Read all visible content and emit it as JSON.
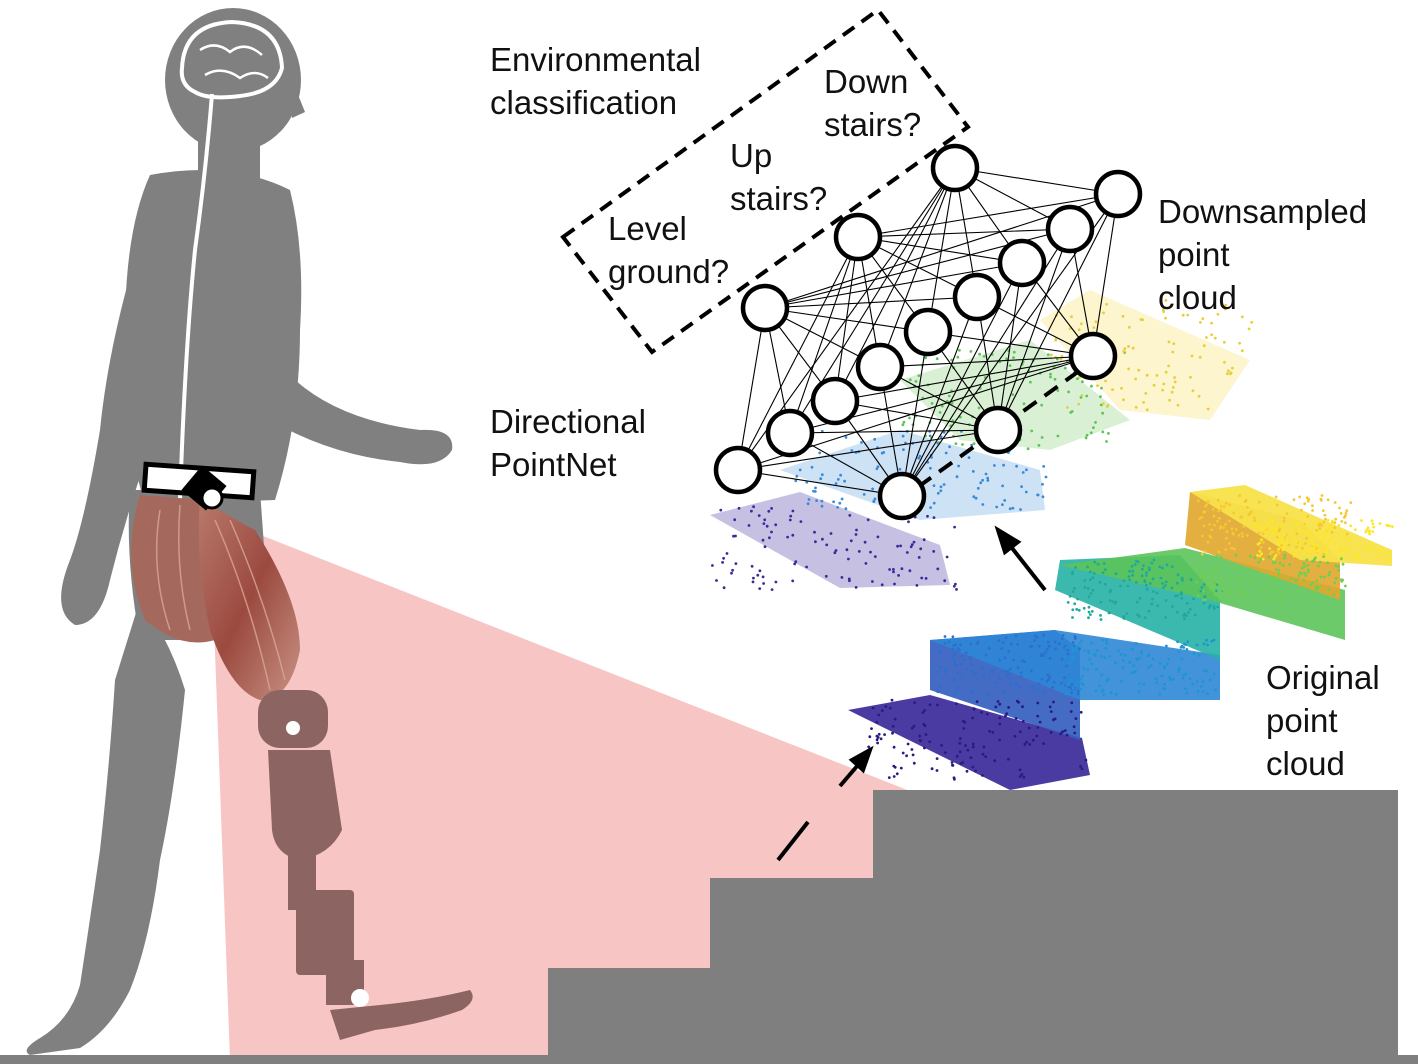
{
  "labels": {
    "env_line1": "Environmental",
    "env_line2": "classification",
    "down_line1": "Down",
    "down_line2": "stairs?",
    "up_line1": "Up",
    "up_line2": "stairs?",
    "level_line1": "Level",
    "level_line2": "ground?",
    "downsampled_line1": "Downsampled",
    "downsampled_line2": "point",
    "downsampled_line3": "cloud",
    "pointnet_line1": "Directional",
    "pointnet_line2": "PointNet",
    "original_line1": "Original",
    "original_line2": "point",
    "original_line3": "cloud"
  },
  "icons": {
    "human": "human-silhouette-icon",
    "brain": "brain-icon",
    "prosthesis": "prosthetic-leg-icon",
    "camera": "depth-camera-icon"
  },
  "colors": {
    "silhouette": "#808080",
    "stairs": "#7f7f7f",
    "camera_fov": "#f8c5c5",
    "prosthesis": "#8c6563",
    "muscle": "#a8544c",
    "cloud_low": "#3b1f8f",
    "cloud_mid": "#35b779",
    "cloud_high": "#fde725"
  },
  "network": {
    "input_layer_nodes": 5,
    "hidden_layer_nodes": 8,
    "output_classes": [
      "Level ground?",
      "Up stairs?",
      "Down stairs?"
    ]
  }
}
